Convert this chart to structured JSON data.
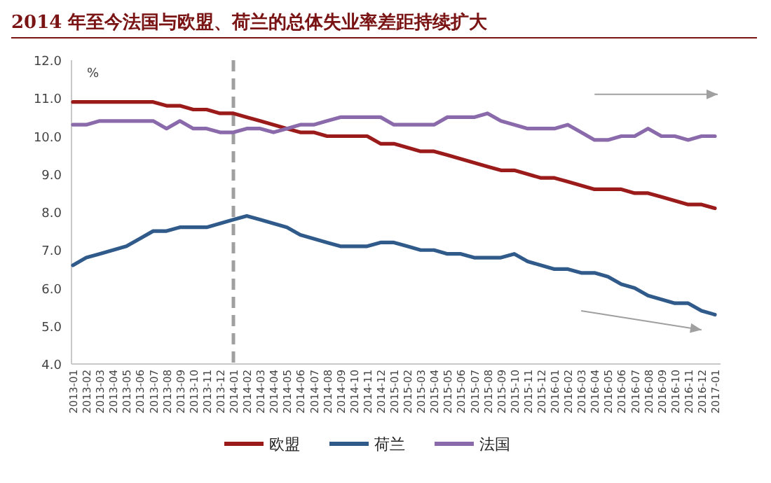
{
  "chart_data": {
    "type": "line",
    "title": "2014 年至今法国与欧盟、荷兰的总体失业率差距持续扩大",
    "ylabel": "%",
    "categories": [
      "2013-01",
      "2013-02",
      "2013-03",
      "2013-04",
      "2013-05",
      "2013-06",
      "2013-07",
      "2013-08",
      "2013-09",
      "2013-10",
      "2013-11",
      "2013-12",
      "2014-01",
      "2014-02",
      "2014-03",
      "2014-04",
      "2014-05",
      "2014-06",
      "2014-07",
      "2014-08",
      "2014-09",
      "2014-10",
      "2014-11",
      "2014-12",
      "2015-01",
      "2015-02",
      "2015-03",
      "2015-04",
      "2015-05",
      "2015-06",
      "2015-07",
      "2015-08",
      "2015-09",
      "2015-10",
      "2015-11",
      "2015-12",
      "2016-01",
      "2016-02",
      "2016-03",
      "2016-04",
      "2016-05",
      "2016-06",
      "2016-07",
      "2016-08",
      "2016-09",
      "2016-10",
      "2016-11",
      "2016-12",
      "2017-01"
    ],
    "series": [
      {
        "name": "欧盟",
        "color": "#9b1b1b",
        "values": [
          10.9,
          10.9,
          10.9,
          10.9,
          10.9,
          10.9,
          10.9,
          10.8,
          10.8,
          10.7,
          10.7,
          10.6,
          10.6,
          10.5,
          10.4,
          10.3,
          10.2,
          10.1,
          10.1,
          10.0,
          10.0,
          10.0,
          10.0,
          9.8,
          9.8,
          9.7,
          9.6,
          9.6,
          9.5,
          9.4,
          9.3,
          9.2,
          9.1,
          9.1,
          9.0,
          8.9,
          8.9,
          8.8,
          8.7,
          8.6,
          8.6,
          8.6,
          8.5,
          8.5,
          8.4,
          8.3,
          8.2,
          8.2,
          8.1
        ]
      },
      {
        "name": "荷兰",
        "color": "#2f5a8a",
        "values": [
          6.6,
          6.8,
          6.9,
          7.0,
          7.1,
          7.3,
          7.5,
          7.5,
          7.6,
          7.6,
          7.6,
          7.7,
          7.8,
          7.9,
          7.8,
          7.7,
          7.6,
          7.4,
          7.3,
          7.2,
          7.1,
          7.1,
          7.1,
          7.2,
          7.2,
          7.1,
          7.0,
          7.0,
          6.9,
          6.9,
          6.8,
          6.8,
          6.8,
          6.9,
          6.7,
          6.6,
          6.5,
          6.5,
          6.4,
          6.4,
          6.3,
          6.1,
          6.0,
          5.8,
          5.7,
          5.6,
          5.6,
          5.4,
          5.3
        ]
      },
      {
        "name": "法国",
        "color": "#8a6aaa",
        "values": [
          10.3,
          10.3,
          10.4,
          10.4,
          10.4,
          10.4,
          10.4,
          10.2,
          10.4,
          10.2,
          10.2,
          10.1,
          10.1,
          10.2,
          10.2,
          10.1,
          10.2,
          10.3,
          10.3,
          10.4,
          10.5,
          10.5,
          10.5,
          10.5,
          10.3,
          10.3,
          10.3,
          10.3,
          10.5,
          10.5,
          10.5,
          10.6,
          10.4,
          10.3,
          10.2,
          10.2,
          10.2,
          10.3,
          10.1,
          9.9,
          9.9,
          10.0,
          10.0,
          10.2,
          10.0,
          10.0,
          9.9,
          10.0,
          10.0
        ]
      }
    ],
    "ylim": [
      4,
      12
    ],
    "yticks": [
      {
        "value": 4,
        "label": "4.0"
      },
      {
        "value": 5,
        "label": "5.0"
      },
      {
        "value": 6,
        "label": "6.0"
      },
      {
        "value": 7,
        "label": "7.0"
      },
      {
        "value": 8,
        "label": "8.0"
      },
      {
        "value": 9,
        "label": "9.0"
      },
      {
        "value": 10,
        "label": "10.0"
      },
      {
        "value": 11,
        "label": "11.0"
      },
      {
        "value": 12,
        "label": "12.0"
      }
    ],
    "ref_lines": [
      {
        "axis": "x",
        "value": "2014-01",
        "color": "#a0a0a0",
        "line_style": "dashed"
      }
    ],
    "grid": false,
    "legend": "bottom",
    "marker": "none",
    "line_style": "solid"
  }
}
